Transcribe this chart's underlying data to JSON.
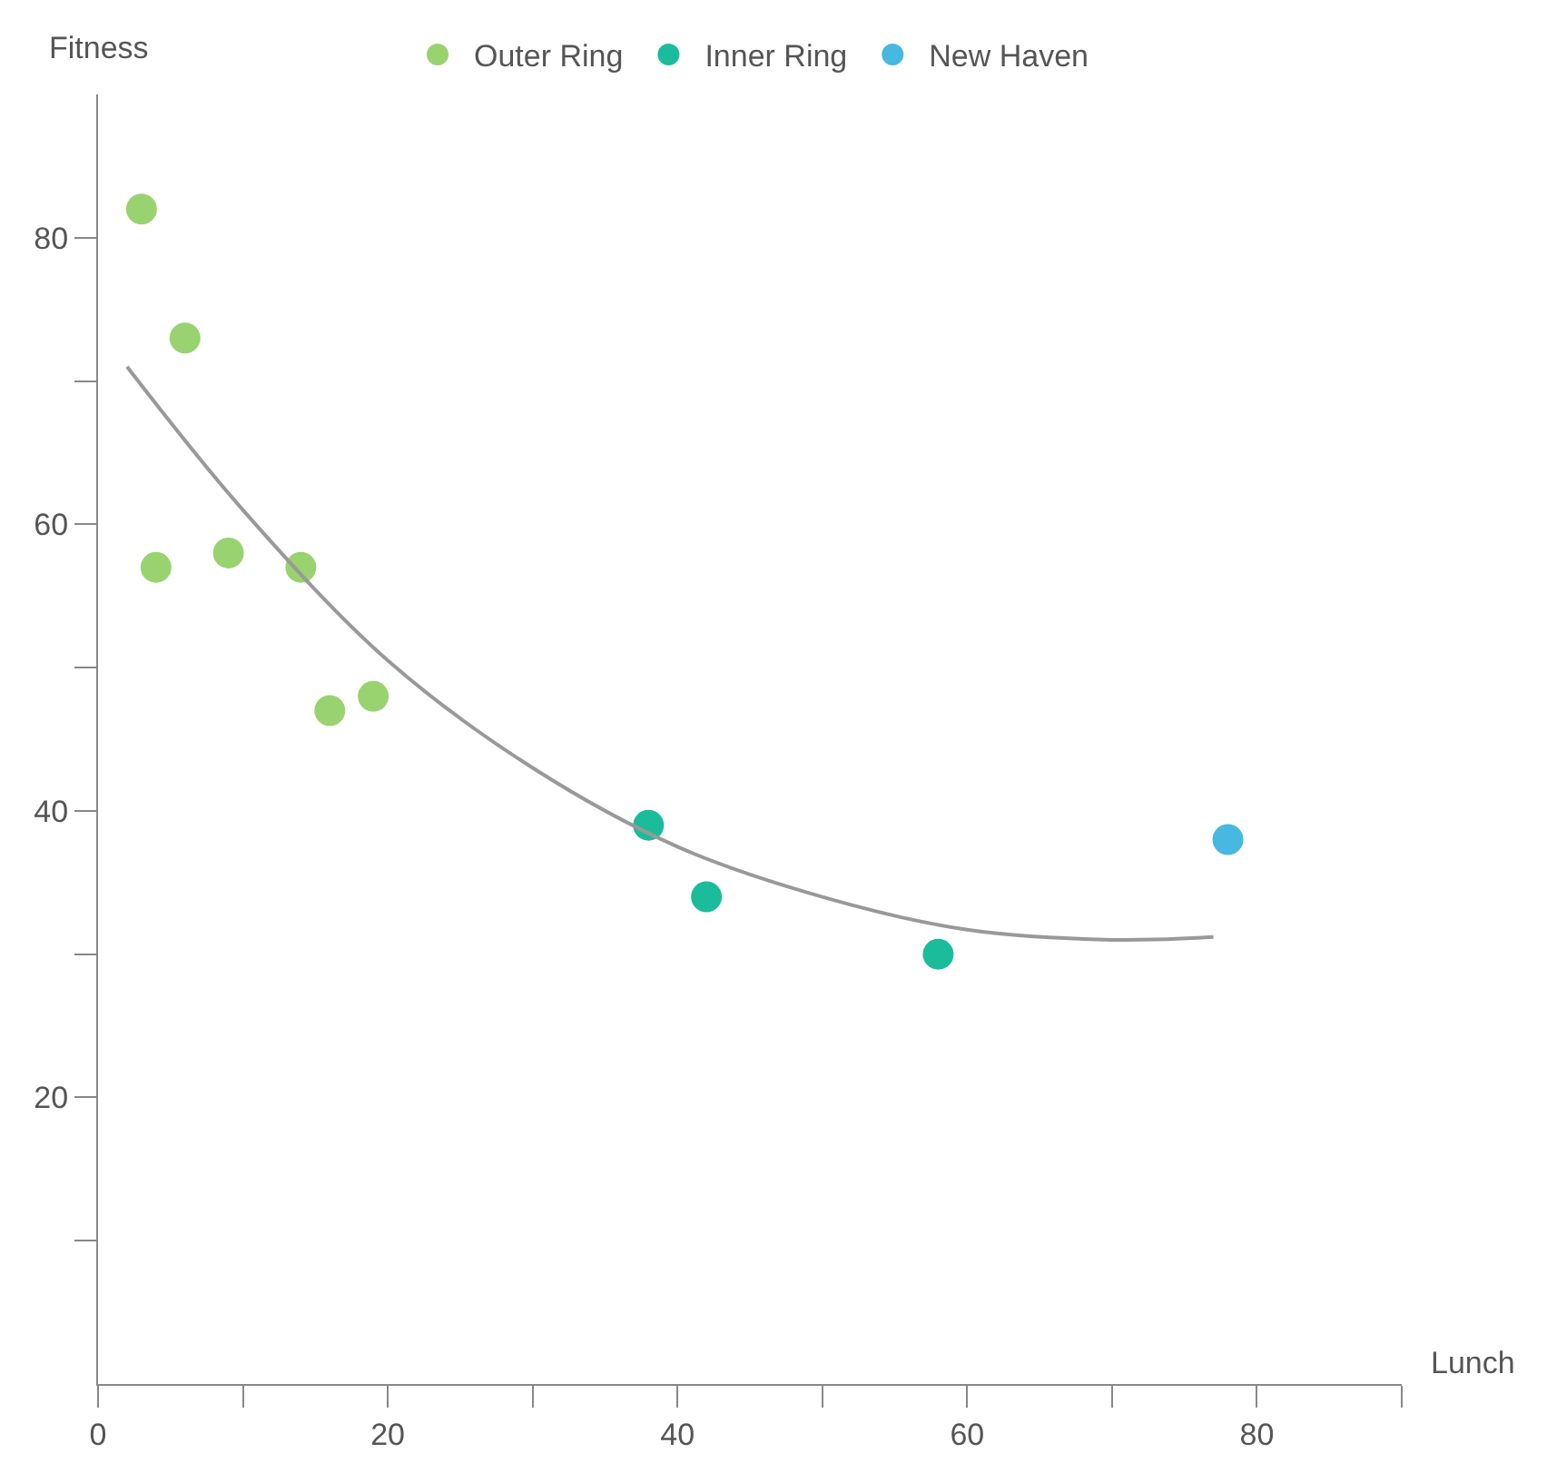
{
  "chart_data": {
    "type": "scatter",
    "xlabel": "Lunch",
    "ylabel": "Fitness",
    "xlim": [
      0,
      90
    ],
    "ylim": [
      0,
      90
    ],
    "xticks": [
      0,
      {
        "value": 10,
        "label": null
      },
      20,
      {
        "value": 30,
        "label": null
      },
      40,
      {
        "value": 50,
        "label": null
      },
      60,
      {
        "value": 70,
        "label": null
      },
      80,
      {
        "value": 90,
        "label": null
      }
    ],
    "yticks": [
      {
        "value": 10,
        "label": null
      },
      20,
      {
        "value": 30,
        "label": null
      },
      40,
      {
        "value": 50,
        "label": null
      },
      60,
      {
        "value": 70,
        "label": null
      },
      80
    ],
    "legend": "top",
    "series": [
      {
        "name": "Outer Ring",
        "marker": "circle",
        "color": "#99d36f",
        "x": [
          3,
          6,
          4,
          9,
          14,
          16,
          19
        ],
        "values": [
          82,
          73,
          57,
          58,
          57,
          47,
          48
        ]
      },
      {
        "name": "Inner Ring",
        "marker": "circle",
        "color": "#1abc9c",
        "x": [
          38,
          42,
          58
        ],
        "values": [
          39,
          34,
          30
        ]
      },
      {
        "name": "New Haven",
        "marker": "circle",
        "color": "#47b8e0",
        "x": [
          78
        ],
        "values": [
          38
        ]
      },
      {
        "type": "line",
        "color": "#999999",
        "x": [
          2,
          10,
          20,
          30,
          40,
          50,
          60,
          70,
          77
        ],
        "values": [
          71,
          61,
          50.5,
          43,
          37.5,
          34,
          31.7,
          31,
          31.2
        ]
      }
    ]
  }
}
